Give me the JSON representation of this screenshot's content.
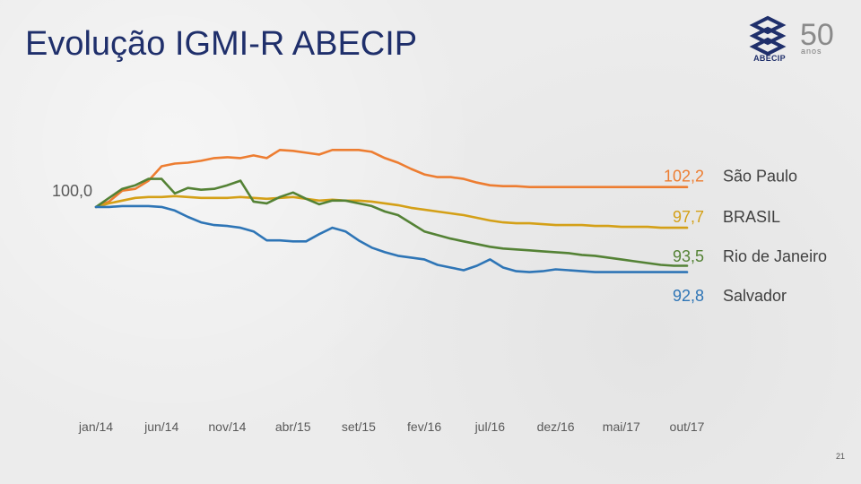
{
  "slide": {
    "title": "Evolução IGMI-R ABECIP",
    "page_number": "21"
  },
  "logo": {
    "brand": "ABECIP",
    "anniversary_number": "50",
    "anniversary_word": "anos",
    "colors": {
      "blue": "#1f2f6b",
      "grey": "#8a8a8a"
    }
  },
  "chart_data": {
    "type": "line",
    "title": "Evolução IGMI-R ABECIP",
    "xlabel": "",
    "ylabel": "",
    "x_tick_labels": [
      "jan/14",
      "jun/14",
      "nov/14",
      "abr/15",
      "set/15",
      "fev/16",
      "jul/16",
      "dez/16",
      "mai/17",
      "out/17"
    ],
    "x": [
      "jan/14",
      "fev/14",
      "mar/14",
      "abr/14",
      "mai/14",
      "jun/14",
      "jul/14",
      "ago/14",
      "set/14",
      "out/14",
      "nov/14",
      "dez/14",
      "jan/15",
      "fev/15",
      "mar/15",
      "abr/15",
      "mai/15",
      "jun/15",
      "jul/15",
      "ago/15",
      "set/15",
      "out/15",
      "nov/15",
      "dez/15",
      "jan/16",
      "fev/16",
      "mar/16",
      "abr/16",
      "mai/16",
      "jun/16",
      "jul/16",
      "ago/16",
      "set/16",
      "out/16",
      "nov/16",
      "dez/16",
      "jan/17",
      "fev/17",
      "mar/17",
      "abr/17",
      "mai/17",
      "jun/17",
      "jul/17",
      "ago/17",
      "set/17",
      "out/17"
    ],
    "start_label": "100,0",
    "ylim": [
      88,
      110
    ],
    "grid": false,
    "legend": "end-of-line labels",
    "series": [
      {
        "name": "São Paulo",
        "end_label": "102,2",
        "color": "#ed7d31",
        "values": [
          100.0,
          100.6,
          101.8,
          102.0,
          102.9,
          104.5,
          104.8,
          104.9,
          105.1,
          105.4,
          105.5,
          105.4,
          105.7,
          105.4,
          106.3,
          106.2,
          106.0,
          105.8,
          106.3,
          106.3,
          106.3,
          106.1,
          105.4,
          104.9,
          104.2,
          103.6,
          103.3,
          103.3,
          103.1,
          102.7,
          102.4,
          102.3,
          102.3,
          102.2,
          102.2,
          102.2,
          102.2,
          102.2,
          102.2,
          102.2,
          102.2,
          102.2,
          102.2,
          102.2,
          102.2,
          102.2
        ]
      },
      {
        "name": "BRASIL",
        "end_label": "97,7",
        "color": "#d4a017",
        "values": [
          100.0,
          100.4,
          100.7,
          101.0,
          101.1,
          101.1,
          101.2,
          101.1,
          101.0,
          101.0,
          101.0,
          101.1,
          101.0,
          100.9,
          101.0,
          101.1,
          100.9,
          100.7,
          100.8,
          100.7,
          100.7,
          100.6,
          100.4,
          100.2,
          99.9,
          99.7,
          99.5,
          99.3,
          99.1,
          98.8,
          98.5,
          98.3,
          98.2,
          98.2,
          98.1,
          98.0,
          98.0,
          98.0,
          97.9,
          97.9,
          97.8,
          97.8,
          97.8,
          97.7,
          97.7,
          97.7
        ]
      },
      {
        "name": "Rio de Janeiro",
        "end_label": "93,5",
        "color": "#548235",
        "values": [
          100.0,
          101.0,
          102.0,
          102.4,
          103.1,
          103.1,
          101.5,
          102.1,
          101.9,
          102.0,
          102.4,
          102.9,
          100.6,
          100.4,
          101.1,
          101.6,
          100.9,
          100.3,
          100.7,
          100.7,
          100.4,
          100.1,
          99.5,
          99.1,
          98.2,
          97.3,
          96.9,
          96.5,
          96.2,
          95.9,
          95.6,
          95.4,
          95.3,
          95.2,
          95.1,
          95.0,
          94.9,
          94.7,
          94.6,
          94.4,
          94.2,
          94.0,
          93.8,
          93.6,
          93.5,
          93.5
        ]
      },
      {
        "name": "Salvador",
        "end_label": "92,8",
        "color": "#2e75b6",
        "values": [
          100.0,
          100.0,
          100.1,
          100.1,
          100.1,
          100.0,
          99.6,
          98.9,
          98.3,
          98.0,
          97.9,
          97.7,
          97.3,
          96.3,
          96.3,
          96.2,
          96.2,
          97.0,
          97.7,
          97.3,
          96.3,
          95.5,
          95.0,
          94.6,
          94.4,
          94.2,
          93.6,
          93.3,
          93.0,
          93.5,
          94.2,
          93.3,
          92.9,
          92.8,
          92.9,
          93.1,
          93.0,
          92.9,
          92.8,
          92.8,
          92.8,
          92.8,
          92.8,
          92.8,
          92.8,
          92.8
        ]
      }
    ]
  }
}
